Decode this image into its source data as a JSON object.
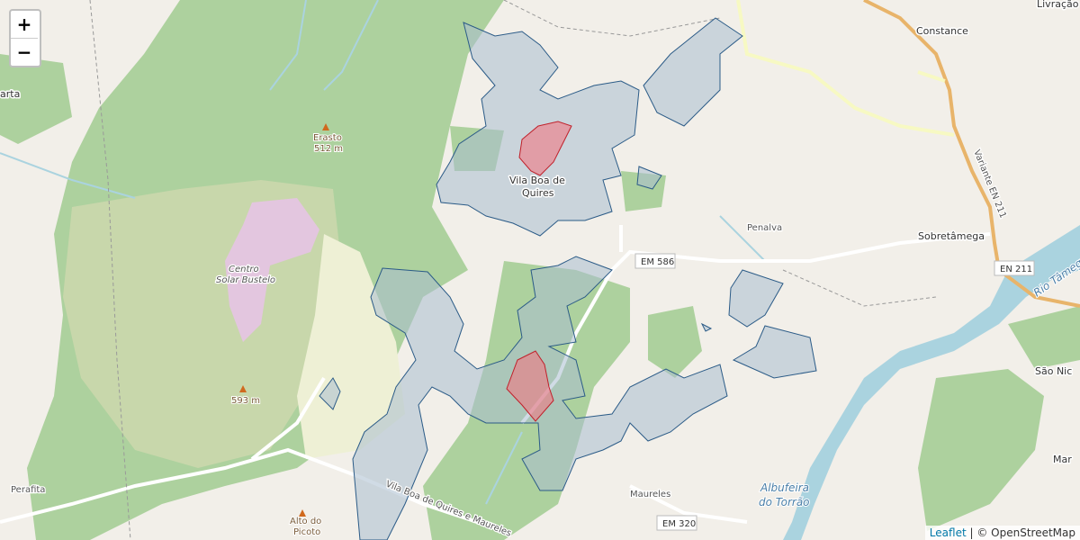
{
  "controls": {
    "zoom_in": "+",
    "zoom_out": "−"
  },
  "labels": [
    "Livração",
    "Constance",
    "EM 586",
    "Penalva",
    "Sobretâmega",
    "EN 211",
    "Rio Tâmega",
    "Erasto",
    "512 m",
    "Vila Boa de",
    "Quires",
    "Centro",
    "Solar Bustelo",
    "593 m",
    "Perafita",
    "Maureles",
    "Albufeira",
    "do Torrão",
    "EM 320",
    "Alto do",
    "Picoto",
    "São Nic",
    "Mar",
    "arta",
    "Variante EN 211",
    "Vila Boa de Quires e Maureles"
  ],
  "attribution": {
    "link": "Leaflet",
    "text": "| © OpenStreetMap"
  }
}
